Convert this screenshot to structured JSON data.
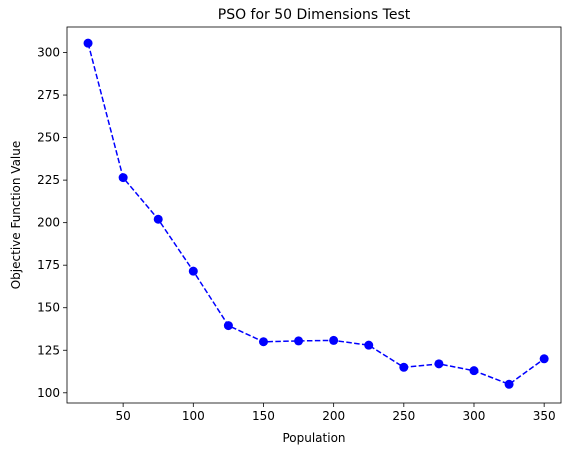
{
  "chart_data": {
    "type": "line",
    "title": "PSO for 50 Dimensions Test",
    "xlabel": "Population",
    "ylabel": "Objective Function Value",
    "xlim": [
      10,
      362
    ],
    "ylim": [
      94,
      315
    ],
    "x_ticks": [
      50,
      100,
      150,
      200,
      250,
      300,
      350
    ],
    "y_ticks": [
      100,
      125,
      150,
      175,
      200,
      225,
      250,
      275,
      300
    ],
    "grid": false,
    "series": [
      {
        "x": [
          25,
          50,
          75,
          100,
          125,
          150,
          175,
          200,
          225,
          250,
          275,
          300,
          325,
          350
        ],
        "values": [
          305.5,
          226.5,
          202,
          171.5,
          139.5,
          130,
          130.5,
          130.8,
          128,
          115,
          117,
          113,
          105,
          120
        ],
        "color": "#0000ff",
        "line_style": "dashed",
        "marker": "circle"
      }
    ]
  }
}
